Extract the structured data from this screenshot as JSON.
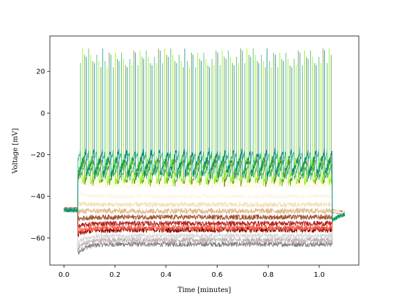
{
  "chart_data": {
    "type": "line",
    "title": "",
    "xlabel": "Time [minutes]",
    "ylabel": "Voltage [mV]",
    "xlim": [
      -0.055,
      1.155
    ],
    "ylim": [
      -73,
      37
    ],
    "xticks": [
      0.0,
      0.2,
      0.4,
      0.6,
      0.8,
      1.0
    ],
    "xtick_labels": [
      "0.0",
      "0.2",
      "0.4",
      "0.6",
      "0.8",
      "1.0"
    ],
    "yticks": [
      -60,
      -40,
      -20,
      0,
      20
    ],
    "ytick_labels": [
      "−60",
      "−40",
      "−20",
      "0",
      "20"
    ],
    "grid": false,
    "legend": "none",
    "stimulus_window": [
      0.055,
      1.05
    ],
    "recording_end": 1.1,
    "baseline": -46,
    "series": [
      {
        "color": "#808080",
        "plateau": -63,
        "noise": 1.2,
        "spiking": false
      },
      {
        "color": "#c0b0b0",
        "plateau": -61,
        "noise": 1.3,
        "spiking": false
      },
      {
        "color": "#d8d8d8",
        "plateau": -59,
        "noise": 1.2,
        "spiking": false
      },
      {
        "color": "#8b0000",
        "plateau": -56,
        "noise": 1.4,
        "spiking": false
      },
      {
        "color": "#ff6347",
        "plateau": -55,
        "noise": 1.3,
        "spiking": false
      },
      {
        "color": "#b22222",
        "plateau": -53,
        "noise": 1.2,
        "spiking": false
      },
      {
        "color": "#a0522d",
        "plateau": -50,
        "noise": 1.2,
        "spiking": false
      },
      {
        "color": "#deb887",
        "plateau": -47,
        "noise": 1.3,
        "spiking": false
      },
      {
        "color": "#f5deb3",
        "plateau": -44,
        "noise": 1.2,
        "spiking": false
      },
      {
        "color": "#fdf5e6",
        "plateau": -40,
        "noise": 1.0,
        "spiking": false
      },
      {
        "color": "#fff8dc",
        "plateau": -35,
        "noise": 1.0,
        "spiking": false
      },
      {
        "color": "#fafad2",
        "plateau": -33,
        "noise": 1.2,
        "spiking": false
      },
      {
        "color": "#6b8e23",
        "plateau": -30,
        "noise": 1.5,
        "spiking": true,
        "phase": 0.2
      },
      {
        "color": "#7cfc00",
        "plateau": -30,
        "noise": 1.5,
        "spiking": true,
        "phase": 0.45
      },
      {
        "color": "#3cb371",
        "plateau": -27,
        "noise": 1.5,
        "spiking": true,
        "phase": 0.7
      },
      {
        "color": "#008b8b",
        "plateau": -26,
        "noise": 1.6,
        "spiking": true,
        "phase": 0.0
      }
    ]
  }
}
